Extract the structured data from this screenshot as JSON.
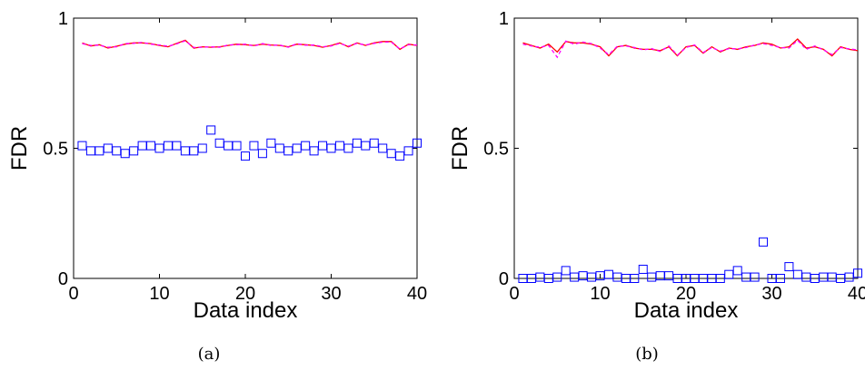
{
  "chart_data": [
    {
      "type": "line",
      "caption": "(a)",
      "xlabel": "Data index",
      "ylabel": "FDR",
      "xlim": [
        0,
        40
      ],
      "ylim": [
        0,
        1
      ],
      "xticks": [
        0,
        10,
        20,
        30,
        40
      ],
      "yticks": [
        0,
        0.5,
        1
      ],
      "xtick_labels": [
        "0",
        "10",
        "20",
        "30",
        "40"
      ],
      "ytick_labels": [
        "0",
        "0.5",
        "1"
      ],
      "grid": false,
      "series": [
        {
          "style": "solid",
          "marker": "none",
          "color": "#ff0000",
          "x": [
            1,
            2,
            3,
            4,
            5,
            6,
            7,
            8,
            9,
            10,
            11,
            12,
            13,
            14,
            15,
            16,
            17,
            18,
            19,
            20,
            21,
            22,
            23,
            24,
            25,
            26,
            27,
            28,
            29,
            30,
            31,
            32,
            33,
            34,
            35,
            36,
            37,
            38,
            39,
            40
          ],
          "values": [
            0.905,
            0.893,
            0.898,
            0.885,
            0.892,
            0.9,
            0.905,
            0.905,
            0.902,
            0.895,
            0.89,
            0.903,
            0.915,
            0.885,
            0.89,
            0.888,
            0.89,
            0.895,
            0.9,
            0.898,
            0.895,
            0.9,
            0.897,
            0.895,
            0.89,
            0.9,
            0.898,
            0.895,
            0.888,
            0.895,
            0.905,
            0.89,
            0.905,
            0.895,
            0.905,
            0.91,
            0.91,
            0.88,
            0.9,
            0.895
          ]
        },
        {
          "style": "dashed",
          "marker": "none",
          "color": "#ff00ff",
          "x": [
            1,
            2,
            3,
            4,
            5,
            6,
            7,
            8,
            9,
            10,
            11,
            12,
            13,
            14,
            15,
            16,
            17,
            18,
            19,
            20,
            21,
            22,
            23,
            24,
            25,
            26,
            27,
            28,
            29,
            30,
            31,
            32,
            33,
            34,
            35,
            36,
            37,
            38,
            39,
            40
          ],
          "values": [
            0.902,
            0.895,
            0.896,
            0.888,
            0.89,
            0.902,
            0.903,
            0.907,
            0.9,
            0.897,
            0.892,
            0.901,
            0.913,
            0.887,
            0.888,
            0.89,
            0.888,
            0.897,
            0.898,
            0.9,
            0.893,
            0.902,
            0.895,
            0.897,
            0.888,
            0.902,
            0.896,
            0.897,
            0.89,
            0.893,
            0.903,
            0.892,
            0.903,
            0.897,
            0.903,
            0.908,
            0.908,
            0.882,
            0.898,
            0.897
          ]
        },
        {
          "style": "none",
          "marker": "square",
          "color": "#0000ff",
          "x": [
            1,
            2,
            3,
            4,
            5,
            6,
            7,
            8,
            9,
            10,
            11,
            12,
            13,
            14,
            15,
            16,
            17,
            18,
            19,
            20,
            21,
            22,
            23,
            24,
            25,
            26,
            27,
            28,
            29,
            30,
            31,
            32,
            33,
            34,
            35,
            36,
            37,
            38,
            39,
            40
          ],
          "values": [
            0.51,
            0.49,
            0.49,
            0.5,
            0.49,
            0.48,
            0.49,
            0.51,
            0.51,
            0.5,
            0.51,
            0.51,
            0.49,
            0.49,
            0.5,
            0.57,
            0.52,
            0.51,
            0.51,
            0.47,
            0.51,
            0.48,
            0.52,
            0.5,
            0.49,
            0.5,
            0.51,
            0.49,
            0.51,
            0.5,
            0.51,
            0.5,
            0.52,
            0.51,
            0.52,
            0.5,
            0.48,
            0.47,
            0.49,
            0.52
          ]
        }
      ]
    },
    {
      "type": "line",
      "caption": "(b)",
      "xlabel": "Data index",
      "ylabel": "FDR",
      "xlim": [
        0,
        40
      ],
      "ylim": [
        0,
        1
      ],
      "xticks": [
        0,
        10,
        20,
        30,
        40
      ],
      "yticks": [
        0,
        0.5,
        1
      ],
      "xtick_labels": [
        "0",
        "10",
        "20",
        "30",
        "40"
      ],
      "ytick_labels": [
        "0",
        "0.5",
        "1"
      ],
      "grid": false,
      "series": [
        {
          "style": "solid",
          "marker": "none",
          "color": "#ff0000",
          "x": [
            1,
            2,
            3,
            4,
            5,
            6,
            7,
            8,
            9,
            10,
            11,
            12,
            13,
            14,
            15,
            16,
            17,
            18,
            19,
            20,
            21,
            22,
            23,
            24,
            25,
            26,
            27,
            28,
            29,
            30,
            31,
            32,
            33,
            34,
            35,
            36,
            37,
            38,
            39,
            40
          ],
          "values": [
            0.905,
            0.895,
            0.885,
            0.9,
            0.87,
            0.91,
            0.905,
            0.905,
            0.9,
            0.89,
            0.855,
            0.89,
            0.895,
            0.885,
            0.88,
            0.88,
            0.875,
            0.89,
            0.855,
            0.89,
            0.895,
            0.865,
            0.89,
            0.87,
            0.885,
            0.88,
            0.89,
            0.895,
            0.905,
            0.9,
            0.885,
            0.89,
            0.92,
            0.885,
            0.89,
            0.88,
            0.855,
            0.89,
            0.88,
            0.875
          ]
        },
        {
          "style": "dashed",
          "marker": "none",
          "color": "#ff00ff",
          "x": [
            1,
            2,
            3,
            4,
            5,
            6,
            7,
            8,
            9,
            10,
            11,
            12,
            13,
            14,
            15,
            16,
            17,
            18,
            19,
            20,
            21,
            22,
            23,
            24,
            25,
            26,
            27,
            28,
            29,
            30,
            31,
            32,
            33,
            34,
            35,
            36,
            37,
            38,
            39,
            40
          ],
          "values": [
            0.9,
            0.893,
            0.888,
            0.895,
            0.85,
            0.912,
            0.9,
            0.908,
            0.902,
            0.885,
            0.86,
            0.892,
            0.893,
            0.887,
            0.878,
            0.883,
            0.872,
            0.893,
            0.858,
            0.887,
            0.897,
            0.868,
            0.887,
            0.873,
            0.883,
            0.882,
            0.887,
            0.897,
            0.902,
            0.895,
            0.887,
            0.885,
            0.915,
            0.88,
            0.893,
            0.878,
            0.86,
            0.887,
            0.882,
            0.878
          ]
        },
        {
          "style": "none",
          "marker": "square",
          "color": "#0000ff",
          "x": [
            1,
            2,
            3,
            4,
            5,
            6,
            7,
            8,
            9,
            10,
            11,
            12,
            13,
            14,
            15,
            16,
            17,
            18,
            19,
            20,
            21,
            22,
            23,
            24,
            25,
            26,
            27,
            28,
            29,
            30,
            31,
            32,
            33,
            34,
            35,
            36,
            37,
            38,
            39,
            40
          ],
          "values": [
            0.0,
            0.0,
            0.005,
            0.0,
            0.005,
            0.03,
            0.005,
            0.01,
            0.005,
            0.01,
            0.015,
            0.005,
            0.0,
            0.0,
            0.035,
            0.005,
            0.01,
            0.01,
            0.0,
            0.0,
            0.0,
            0.0,
            0.0,
            0.0,
            0.015,
            0.03,
            0.005,
            0.005,
            0.14,
            0.0,
            0.0,
            0.045,
            0.015,
            0.005,
            0.0,
            0.005,
            0.005,
            0.0,
            0.005,
            0.02
          ]
        }
      ]
    }
  ]
}
